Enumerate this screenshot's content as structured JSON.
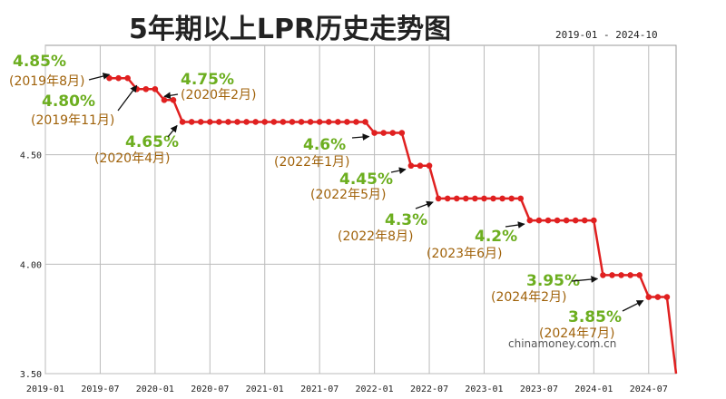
{
  "chart_data": {
    "type": "line",
    "title": "5年期以上LPR历史走势图",
    "date_range": "2019-01 - 2024-10",
    "watermark": "chinamoney.com.cn",
    "xlabel": "",
    "ylabel": "",
    "ylim": [
      3.5,
      5.0
    ],
    "xlim": [
      "2019-01",
      "2024-10"
    ],
    "grid": true,
    "x_ticks": [
      "2019-01",
      "2019-07",
      "2020-01",
      "2020-07",
      "2021-01",
      "2021-07",
      "2022-01",
      "2022-07",
      "2023-01",
      "2023-07",
      "2024-01",
      "2024-07"
    ],
    "y_ticks": [
      "3.50",
      "4.00",
      "4.50"
    ],
    "series": [
      {
        "color": "#e02020",
        "steps": [
          {
            "from": "2019-08",
            "to": "2019-10",
            "value": 4.85
          },
          {
            "from": "2019-11",
            "to": "2020-01",
            "value": 4.8
          },
          {
            "from": "2020-02",
            "to": "2020-03",
            "value": 4.75
          },
          {
            "from": "2020-04",
            "to": "2021-12",
            "value": 4.65
          },
          {
            "from": "2022-01",
            "to": "2022-04",
            "value": 4.6
          },
          {
            "from": "2022-05",
            "to": "2022-07",
            "value": 4.45
          },
          {
            "from": "2022-08",
            "to": "2023-05",
            "value": 4.3
          },
          {
            "from": "2023-06",
            "to": "2024-01",
            "value": 4.2
          },
          {
            "from": "2024-02",
            "to": "2024-06",
            "value": 3.95
          },
          {
            "from": "2024-07",
            "to": "2024-09",
            "value": 3.85
          }
        ],
        "tail": {
          "to": "2024-10",
          "value": 3.5
        }
      }
    ],
    "annotations": [
      {
        "value_text": "4.85%",
        "date_text": "(2019年8月)",
        "at": "2019-08",
        "value": 4.85
      },
      {
        "value_text": "4.80%",
        "date_text": "(2019年11月)",
        "at": "2019-11",
        "value": 4.8
      },
      {
        "value_text": "4.75%",
        "date_text": "(2020年2月)",
        "at": "2020-02",
        "value": 4.75
      },
      {
        "value_text": "4.65%",
        "date_text": "(2020年4月)",
        "at": "2020-04",
        "value": 4.65
      },
      {
        "value_text": "4.6%",
        "date_text": "(2022年1月)",
        "at": "2022-01",
        "value": 4.6
      },
      {
        "value_text": "4.45%",
        "date_text": "(2022年5月)",
        "at": "2022-05",
        "value": 4.45
      },
      {
        "value_text": "4.3%",
        "date_text": "(2022年8月)",
        "at": "2022-08",
        "value": 4.3
      },
      {
        "value_text": "4.2%",
        "date_text": "(2023年6月)",
        "at": "2023-06",
        "value": 4.2
      },
      {
        "value_text": "3.95%",
        "date_text": "(2024年2月)",
        "at": "2024-02",
        "value": 3.95
      },
      {
        "value_text": "3.85%",
        "date_text": "(2024年7月)",
        "at": "2024-07",
        "value": 3.85
      }
    ]
  }
}
